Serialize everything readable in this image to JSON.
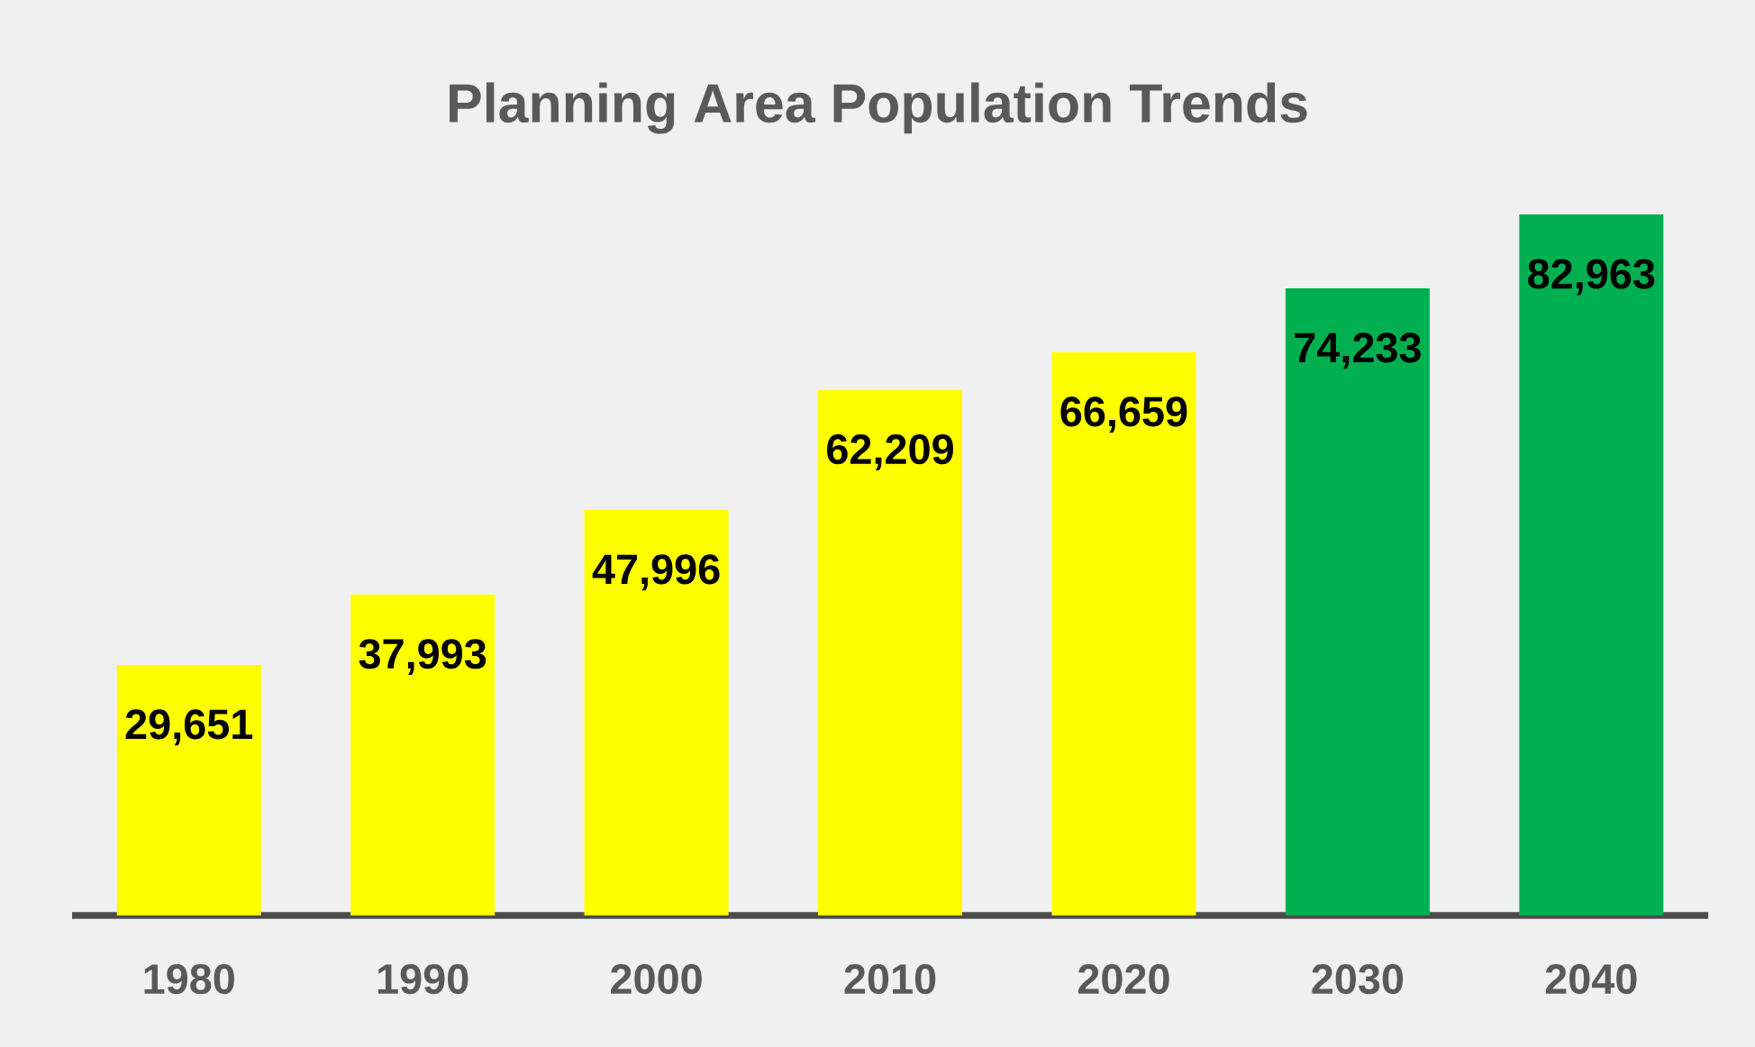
{
  "chart_data": {
    "type": "bar",
    "title": "Planning Area Population Trends",
    "categories": [
      "1980",
      "1990",
      "2000",
      "2010",
      "2020",
      "2030",
      "2040"
    ],
    "values": [
      29651,
      37993,
      47996,
      62209,
      66659,
      74233,
      82963
    ],
    "value_labels": [
      "29,651",
      "37,993",
      "47,996",
      "62,209",
      "66,659",
      "74,233",
      "82,963"
    ],
    "colors": [
      "#ffff00",
      "#ffff00",
      "#ffff00",
      "#ffff00",
      "#ffff00",
      "#00b050",
      "#00b050"
    ]
  }
}
